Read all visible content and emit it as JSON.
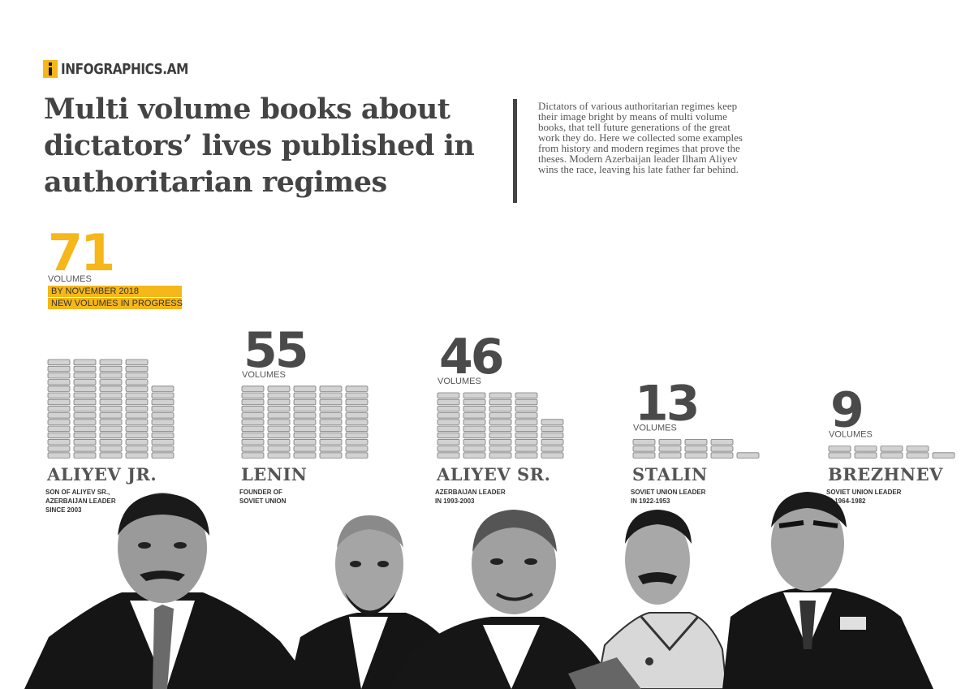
{
  "brand": {
    "name": "INFOGRAPHICS.AM",
    "logo_icon": "info-i-icon",
    "accent_color": "#f5b719"
  },
  "header": {
    "title": "Multi volume books about dictators’ lives published in authoritarian regimes",
    "intro": "Dictators of various authoritarian regimes keep their image bright by means of multi volume books, that tell future generations of the great work they do. Here we collected some examples from history and modern regimes that prove the theses. Modern Azerbaijan leader Ilham Aliyev wins the race, leaving his late father far behind."
  },
  "chart_data": {
    "type": "bar",
    "title": "Multi volume books about dictators’ lives published in authoritarian regimes",
    "unit": "VOLUMES",
    "categories": [
      "ALIYEV JR.",
      "LENIN",
      "ALIYEV SR.",
      "STALIN",
      "BREZHNEV"
    ],
    "values": [
      71,
      55,
      46,
      13,
      9
    ],
    "descriptions": [
      [
        "SON OF ALIYEV SR.,",
        "AZERBAIJAN LEADER",
        "SINCE 2003"
      ],
      [
        "FOUNDER OF",
        "SOVIET UNION"
      ],
      [
        "AZERBAIJAN LEADER",
        "IN 1993-2003"
      ],
      [
        "SOVIET UNION LEADER",
        "IN 1922-1953"
      ],
      [
        "SOVIET UNION LEADER",
        "IN 1964-1982"
      ]
    ],
    "highlight_color": "#f5b719",
    "number_color": "#4a4a4a",
    "annotation": [
      "BY NOVEMBER 2018",
      "NEW VOLUMES IN PROGRESS"
    ],
    "book_icon": "book-stack-icon"
  },
  "portraits": [
    "ALIYEV JR.",
    "LENIN",
    "ALIYEV SR.",
    "STALIN",
    "BREZHNEV"
  ]
}
